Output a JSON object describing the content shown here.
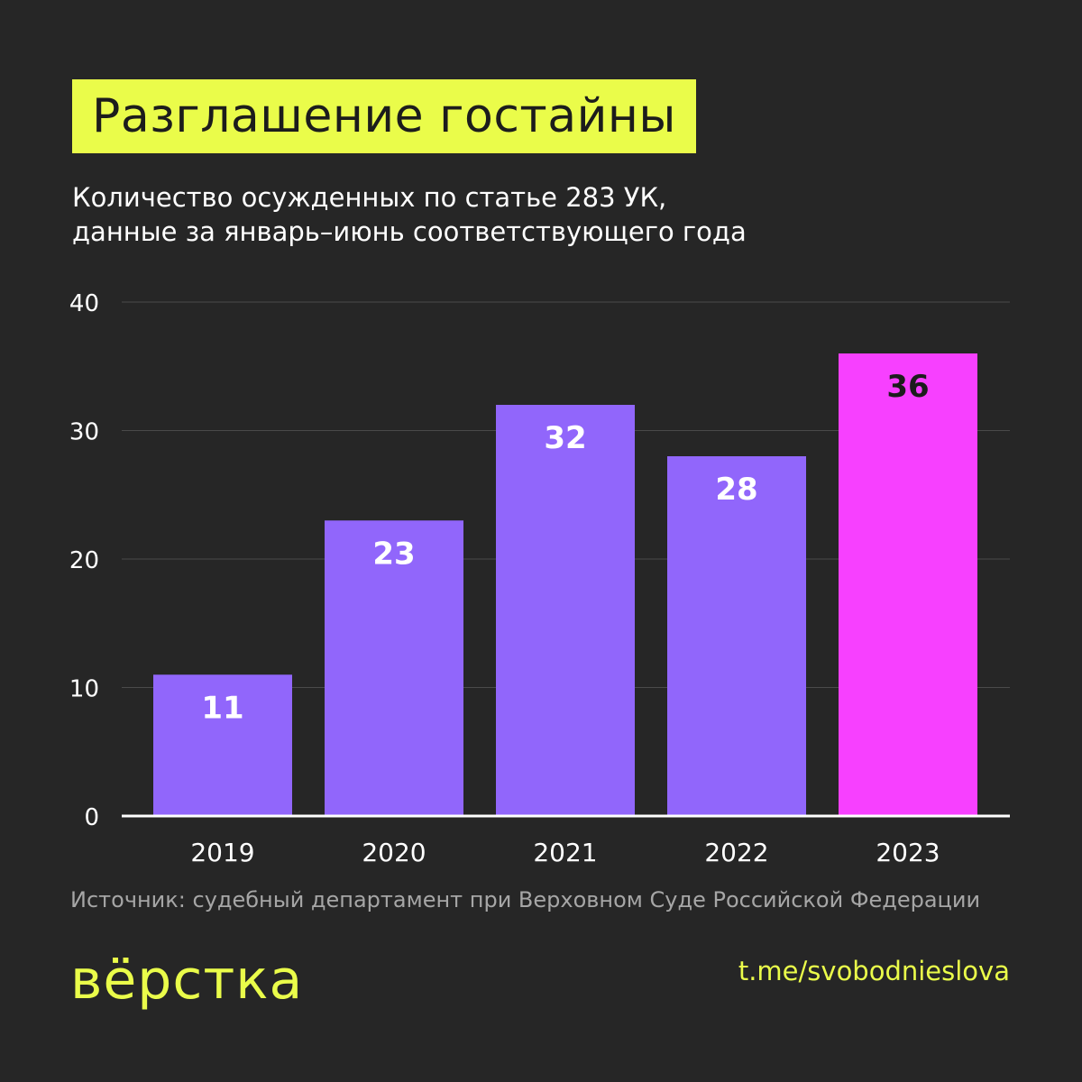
{
  "header": {
    "title": "Разглашение гостайны",
    "subtitle_line1": "Количество осужденных по статье 283 УК,",
    "subtitle_line2": "данные за январь–июнь соответствующего года"
  },
  "chart_data": {
    "type": "bar",
    "categories": [
      "2019",
      "2020",
      "2021",
      "2022",
      "2023"
    ],
    "values": [
      11,
      23,
      32,
      28,
      36
    ],
    "ylim": [
      0,
      40
    ],
    "yticks": [
      0,
      10,
      20,
      30,
      40
    ],
    "grid": true,
    "colors": {
      "default_bar": "#9166fb",
      "highlight_bar": "#f740ff",
      "grid": "#4a4a4a",
      "axis": "#ffffff",
      "label_default": "#ffffff",
      "label_highlight": "#1c1c1c"
    },
    "highlight_index": 4
  },
  "footer": {
    "source": "Источник: судебный департамент при Верховном Суде Российской Федерации",
    "logo_text": "вёрстка",
    "link": "t.me/svobodnieslova"
  }
}
